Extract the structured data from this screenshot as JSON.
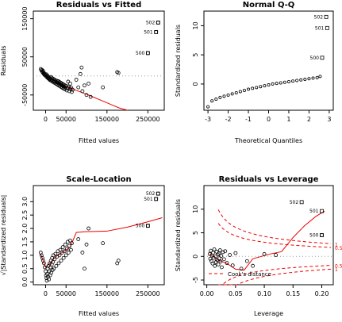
{
  "chart_data": [
    {
      "type": "scatter",
      "title": "Residuals vs Fitted",
      "xlabel": "Fitted values",
      "ylabel": "Residuals",
      "xlim": [
        -30000,
        290000
      ],
      "ylim": [
        -90000,
        170000
      ],
      "xticks": [
        0,
        50000,
        150000,
        250000
      ],
      "xtick_labels": [
        "0",
        "50000",
        "150000",
        "250000"
      ],
      "yticks": [
        -50000,
        50000,
        150000
      ],
      "ytick_labels": [
        "-50000",
        "50000",
        "150000"
      ],
      "reference_line": {
        "y": 0,
        "style": "dotted"
      },
      "points": [
        [
          -12000,
          18000
        ],
        [
          -10000,
          14000
        ],
        [
          -9000,
          16000
        ],
        [
          -8000,
          11000
        ],
        [
          -7000,
          9000
        ],
        [
          -6000,
          13000
        ],
        [
          -5000,
          6000
        ],
        [
          -4000,
          8000
        ],
        [
          -3000,
          3000
        ],
        [
          -2000,
          5000
        ],
        [
          0,
          2000
        ],
        [
          1000,
          -1000
        ],
        [
          2000,
          4000
        ],
        [
          3000,
          -3000
        ],
        [
          4000,
          1000
        ],
        [
          5000,
          -5000
        ],
        [
          6000,
          -2000
        ],
        [
          7000,
          -7000
        ],
        [
          8000,
          -4000
        ],
        [
          9000,
          -9000
        ],
        [
          10000,
          -6000
        ],
        [
          11000,
          -11000
        ],
        [
          12000,
          -8000
        ],
        [
          13000,
          -3000
        ],
        [
          14000,
          -13000
        ],
        [
          15000,
          -10000
        ],
        [
          16000,
          -6000
        ],
        [
          17000,
          -15000
        ],
        [
          18000,
          -12000
        ],
        [
          19000,
          -8000
        ],
        [
          20000,
          -17000
        ],
        [
          21000,
          -14000
        ],
        [
          22000,
          -10000
        ],
        [
          23000,
          -19000
        ],
        [
          24000,
          -15000
        ],
        [
          25000,
          -12000
        ],
        [
          26000,
          -21000
        ],
        [
          27000,
          -17000
        ],
        [
          28000,
          -13000
        ],
        [
          29000,
          -23000
        ],
        [
          30000,
          -18000
        ],
        [
          31000,
          -14000
        ],
        [
          32000,
          -25000
        ],
        [
          33000,
          -20000
        ],
        [
          34000,
          -16000
        ],
        [
          35000,
          -27000
        ],
        [
          36000,
          -22000
        ],
        [
          37000,
          -18000
        ],
        [
          38000,
          -29000
        ],
        [
          39000,
          -24000
        ],
        [
          40000,
          -20000
        ],
        [
          41000,
          -31000
        ],
        [
          42000,
          -26000
        ],
        [
          43000,
          -22000
        ],
        [
          44000,
          -33000
        ],
        [
          45000,
          -28000
        ],
        [
          46000,
          -24000
        ],
        [
          47000,
          -35000
        ],
        [
          48000,
          -30000
        ],
        [
          50000,
          -26000
        ],
        [
          52000,
          -38000
        ],
        [
          54000,
          -32000
        ],
        [
          56000,
          -28000
        ],
        [
          58000,
          -40000
        ],
        [
          60000,
          -34000
        ],
        [
          62000,
          -30000
        ],
        [
          64000,
          -42000
        ],
        [
          66000,
          -36000
        ],
        [
          60000,
          -20000
        ],
        [
          55000,
          -15000
        ],
        [
          75000,
          -10000
        ],
        [
          80000,
          -30000
        ],
        [
          85000,
          5000
        ],
        [
          88000,
          22000
        ],
        [
          90000,
          -40000
        ],
        [
          95000,
          -25000
        ],
        [
          100000,
          -50000
        ],
        [
          105000,
          -20000
        ],
        [
          110000,
          -55000
        ],
        [
          140000,
          -30000
        ],
        [
          175000,
          10000
        ],
        [
          178000,
          8000
        ],
        [
          250000,
          60000
        ],
        [
          270000,
          115000
        ],
        [
          275000,
          140000
        ]
      ],
      "labeled_points": [
        {
          "label": "502",
          "x": 275000,
          "y": 140000
        },
        {
          "label": "501",
          "x": 270000,
          "y": 115000
        },
        {
          "label": "500",
          "x": 250000,
          "y": 60000
        }
      ],
      "smoother": [
        [
          -12000,
          15000
        ],
        [
          0,
          0
        ],
        [
          20000,
          -12000
        ],
        [
          40000,
          -22000
        ],
        [
          60000,
          -32000
        ],
        [
          80000,
          -40000
        ],
        [
          100000,
          -48000
        ],
        [
          120000,
          -57000
        ],
        [
          140000,
          -66000
        ],
        [
          160000,
          -75000
        ],
        [
          180000,
          -84000
        ],
        [
          200000,
          -90000
        ]
      ]
    },
    {
      "type": "scatter",
      "title": "Normal Q-Q",
      "xlabel": "Theoretical Quantiles",
      "ylabel": "Standardized residuals",
      "xlim": [
        -3.2,
        3.2
      ],
      "ylim": [
        -4.5,
        12.5
      ],
      "xticks": [
        -3,
        -2,
        -1,
        0,
        1,
        2,
        3
      ],
      "xtick_labels": [
        "-3",
        "-2",
        "-1",
        "0",
        "1",
        "2",
        "3"
      ],
      "yticks": [
        0,
        5,
        10
      ],
      "ytick_labels": [
        "0",
        "5",
        "10"
      ],
      "qq_curve": [
        [
          -3.0,
          -3.9
        ],
        [
          -2.8,
          -2.9
        ],
        [
          -2.6,
          -2.6
        ],
        [
          -2.4,
          -2.3
        ],
        [
          -2.2,
          -2.1
        ],
        [
          -2.0,
          -1.9
        ],
        [
          -1.8,
          -1.7
        ],
        [
          -1.6,
          -1.5
        ],
        [
          -1.4,
          -1.3
        ],
        [
          -1.2,
          -1.1
        ],
        [
          -1.0,
          -0.9
        ],
        [
          -0.8,
          -0.75
        ],
        [
          -0.6,
          -0.6
        ],
        [
          -0.4,
          -0.45
        ],
        [
          -0.2,
          -0.3
        ],
        [
          0.0,
          -0.15
        ],
        [
          0.2,
          0.0
        ],
        [
          0.4,
          0.1
        ],
        [
          0.6,
          0.2
        ],
        [
          0.8,
          0.3
        ],
        [
          1.0,
          0.4
        ],
        [
          1.2,
          0.5
        ],
        [
          1.4,
          0.6
        ],
        [
          1.6,
          0.7
        ],
        [
          1.8,
          0.8
        ],
        [
          2.0,
          0.9
        ],
        [
          2.2,
          1.0
        ],
        [
          2.4,
          1.1
        ],
        [
          2.55,
          1.3
        ]
      ],
      "labeled_points": [
        {
          "label": "502",
          "x": 2.85,
          "y": 11.5
        },
        {
          "label": "501",
          "x": 2.9,
          "y": 9.6
        },
        {
          "label": "500",
          "x": 2.65,
          "y": 4.5
        }
      ]
    },
    {
      "type": "scatter",
      "title": "Scale-Location",
      "xlabel": "Fitted values",
      "ylabel": "√|Standardized residuals|",
      "xlim": [
        -30000,
        290000
      ],
      "ylim": [
        -0.1,
        3.6
      ],
      "xticks": [
        0,
        50000,
        150000,
        250000
      ],
      "xtick_labels": [
        "0",
        "50000",
        "150000",
        "250000"
      ],
      "yticks": [
        0,
        0.5,
        1,
        1.5,
        2,
        2.5,
        3
      ],
      "ytick_labels": [
        "0.0",
        "0.5",
        "1.0",
        "1.5",
        "2.0",
        "2.5",
        "3.0"
      ],
      "points": [
        [
          -12000,
          1.1
        ],
        [
          -10000,
          1.0
        ],
        [
          -8000,
          0.9
        ],
        [
          -6000,
          0.8
        ],
        [
          -4000,
          0.7
        ],
        [
          -2000,
          0.55
        ],
        [
          0,
          0.4
        ],
        [
          1000,
          0.25
        ],
        [
          2000,
          0.15
        ],
        [
          3000,
          0.05
        ],
        [
          4000,
          0.3
        ],
        [
          5000,
          0.5
        ],
        [
          6000,
          0.2
        ],
        [
          7000,
          0.6
        ],
        [
          8000,
          0.1
        ],
        [
          9000,
          0.4
        ],
        [
          10000,
          0.7
        ],
        [
          11000,
          0.25
        ],
        [
          12000,
          0.55
        ],
        [
          13000,
          0.8
        ],
        [
          14000,
          0.35
        ],
        [
          15000,
          0.65
        ],
        [
          16000,
          0.9
        ],
        [
          17000,
          0.45
        ],
        [
          18000,
          0.75
        ],
        [
          19000,
          1.0
        ],
        [
          20000,
          0.5
        ],
        [
          22000,
          0.85
        ],
        [
          24000,
          1.05
        ],
        [
          26000,
          0.6
        ],
        [
          28000,
          0.95
        ],
        [
          30000,
          1.15
        ],
        [
          32000,
          0.7
        ],
        [
          34000,
          1.0
        ],
        [
          36000,
          1.2
        ],
        [
          38000,
          0.8
        ],
        [
          40000,
          1.1
        ],
        [
          42000,
          1.3
        ],
        [
          44000,
          0.9
        ],
        [
          46000,
          1.15
        ],
        [
          48000,
          1.4
        ],
        [
          50000,
          1.0
        ],
        [
          52000,
          1.25
        ],
        [
          54000,
          1.5
        ],
        [
          56000,
          1.1
        ],
        [
          58000,
          1.35
        ],
        [
          60000,
          1.55
        ],
        [
          62000,
          1.2
        ],
        [
          64000,
          1.45
        ],
        [
          80000,
          1.6
        ],
        [
          90000,
          1.1
        ],
        [
          95000,
          0.5
        ],
        [
          100000,
          1.4
        ],
        [
          105000,
          2.0
        ],
        [
          140000,
          1.45
        ],
        [
          175000,
          0.7
        ],
        [
          178000,
          0.8
        ],
        [
          250000,
          2.1
        ],
        [
          270000,
          3.1
        ],
        [
          275000,
          3.3
        ]
      ],
      "labeled_points": [
        {
          "label": "502",
          "x": 275000,
          "y": 3.3
        },
        {
          "label": "501",
          "x": 270000,
          "y": 3.1
        },
        {
          "label": "500",
          "x": 250000,
          "y": 2.1
        }
      ],
      "smoother": [
        [
          -12000,
          1.05
        ],
        [
          0,
          0.55
        ],
        [
          10000,
          0.7
        ],
        [
          25000,
          0.95
        ],
        [
          40000,
          1.1
        ],
        [
          60000,
          1.3
        ],
        [
          75000,
          1.85
        ],
        [
          95000,
          1.88
        ],
        [
          150000,
          1.9
        ],
        [
          200000,
          2.05
        ],
        [
          250000,
          2.25
        ],
        [
          285000,
          2.4
        ]
      ]
    },
    {
      "type": "scatter",
      "title": "Residuals vs Leverage",
      "xlabel": "Leverage",
      "ylabel": "Standardized residuals",
      "xlim": [
        -0.005,
        0.22
      ],
      "ylim": [
        -6,
        15
      ],
      "xticks": [
        0,
        0.05,
        0.1,
        0.15,
        0.2
      ],
      "xtick_labels": [
        "0.00",
        "0.05",
        "0.10",
        "0.15",
        "0.20"
      ],
      "yticks": [
        -5,
        0,
        5,
        10
      ],
      "ytick_labels": [
        "-5",
        "0",
        "5",
        "10"
      ],
      "reference_line": {
        "y": 0,
        "style": "dotted"
      },
      "points": [
        [
          0.005,
          0.5
        ],
        [
          0.006,
          -0.5
        ],
        [
          0.007,
          1.2
        ],
        [
          0.008,
          -1.0
        ],
        [
          0.009,
          0.2
        ],
        [
          0.01,
          -1.5
        ],
        [
          0.011,
          0.8
        ],
        [
          0.012,
          -0.3
        ],
        [
          0.013,
          1.5
        ],
        [
          0.014,
          -2.0
        ],
        [
          0.015,
          0.0
        ],
        [
          0.016,
          -1.2
        ],
        [
          0.017,
          1.0
        ],
        [
          0.018,
          -0.8
        ],
        [
          0.019,
          0.4
        ],
        [
          0.02,
          -1.7
        ],
        [
          0.021,
          0.6
        ],
        [
          0.022,
          -0.4
        ],
        [
          0.023,
          1.3
        ],
        [
          0.024,
          -1.1
        ],
        [
          0.025,
          0.1
        ],
        [
          0.026,
          -2.3
        ],
        [
          0.028,
          0.9
        ],
        [
          0.03,
          -0.6
        ],
        [
          0.032,
          1.1
        ],
        [
          0.035,
          -1.4
        ],
        [
          0.04,
          0.3
        ],
        [
          0.045,
          -1.9
        ],
        [
          0.05,
          0.7
        ],
        [
          0.06,
          -2.6
        ],
        [
          0.07,
          -1.0
        ],
        [
          0.08,
          -2.0
        ],
        [
          0.1,
          0.5
        ],
        [
          0.12,
          0.3
        ],
        [
          0.2,
          4.5
        ]
      ],
      "labeled_points": [
        {
          "label": "502",
          "x": 0.165,
          "y": 11.5
        },
        {
          "label": "501",
          "x": 0.2,
          "y": 9.6
        },
        {
          "label": "500",
          "x": 0.2,
          "y": 4.5
        }
      ],
      "smoother": [
        [
          0.005,
          0.5
        ],
        [
          0.02,
          -0.8
        ],
        [
          0.035,
          -1.5
        ],
        [
          0.05,
          -2.7
        ],
        [
          0.065,
          -2.9
        ],
        [
          0.08,
          -0.5
        ],
        [
          0.11,
          0.5
        ],
        [
          0.13,
          1.0
        ],
        [
          0.15,
          4.0
        ],
        [
          0.17,
          6.5
        ],
        [
          0.19,
          8.5
        ],
        [
          0.205,
          9.6
        ]
      ],
      "cooks_distance": {
        "label": "Cook's distance",
        "levels": [
          {
            "label": "1",
            "level": 1
          },
          {
            "label": "0.5",
            "level": 0.5
          }
        ]
      }
    }
  ]
}
